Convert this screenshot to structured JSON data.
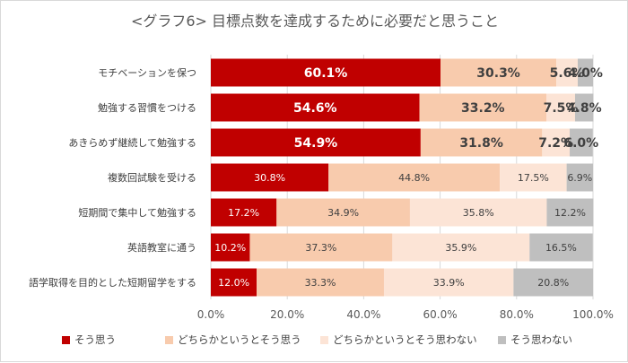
{
  "chart_data": {
    "type": "bar",
    "orientation": "horizontal",
    "stacked": true,
    "title": "<グラフ6> 目標点数を達成するために必要だと思うこと",
    "categories": [
      "モチベーションを保つ",
      "勉強する習慣をつける",
      "あきらめず継続して勉強する",
      "複数回試験を受ける",
      "短期間で集中して勉強する",
      "英語教室に通う",
      "語学取得を目的とした短期留学をする"
    ],
    "series": [
      {
        "name": "そう思う",
        "color": "#c00000",
        "values": [
          60.1,
          54.6,
          54.9,
          30.8,
          17.2,
          10.2,
          12.0
        ],
        "labels": [
          "60.1%",
          "54.6%",
          "54.9%",
          "30.8%",
          "17.2%",
          "10.2%",
          "12.0%"
        ]
      },
      {
        "name": "どちらかというとそう思う",
        "color": "#f8cbad",
        "values": [
          30.3,
          33.2,
          31.8,
          44.8,
          34.9,
          37.3,
          33.3
        ],
        "labels": [
          "30.3%",
          "33.2%",
          "31.8%",
          "44.8%",
          "34.9%",
          "37.3%",
          "33.3%"
        ]
      },
      {
        "name": "どちらかというとそう思わない",
        "color": "#fce4d6",
        "values": [
          5.6,
          7.5,
          7.2,
          17.5,
          35.8,
          35.9,
          33.9
        ],
        "labels": [
          "5.6%",
          "7.5%",
          "7.2%",
          "17.5%",
          "35.8%",
          "35.9%",
          "33.9%"
        ]
      },
      {
        "name": "そう思わない",
        "color": "#bfbfbf",
        "values": [
          4.0,
          4.8,
          6.0,
          6.9,
          12.2,
          16.5,
          20.8
        ],
        "labels": [
          "4.0%",
          "4.8%",
          "6.0%",
          "6.9%",
          "12.2%",
          "16.5%",
          "20.8%"
        ]
      }
    ],
    "xlim": [
      0,
      100
    ],
    "xticks": [
      0,
      20,
      40,
      60,
      80,
      100
    ],
    "xtick_labels": [
      "0.0%",
      "20.0%",
      "40.0%",
      "60.0%",
      "80.0%",
      "100.0%"
    ],
    "grid": true,
    "legend_position": "bottom",
    "bold_labels_rows": [
      0,
      1,
      2
    ]
  }
}
